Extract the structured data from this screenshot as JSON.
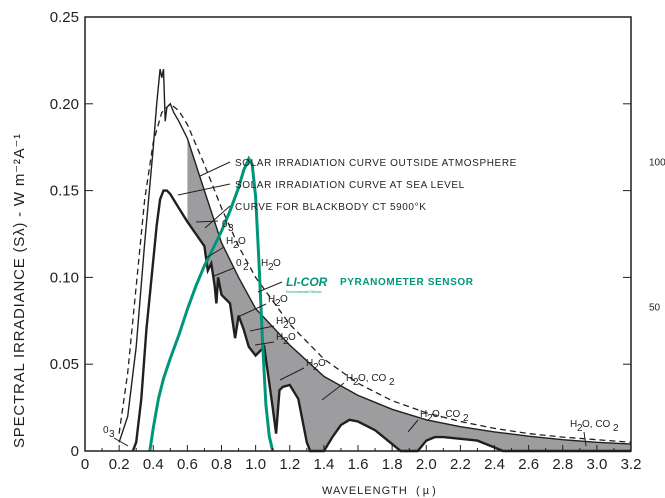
{
  "chart_data": {
    "type": "line",
    "title": "",
    "xlabel": "WAVELENGTH",
    "xlabel_unit": "( µ )",
    "ylabel": "SPECTRAL IRRADIANCE (Sλ) - W m⁻²A⁻¹",
    "xlim": [
      0,
      3.2
    ],
    "ylim": [
      0,
      0.25
    ],
    "y2lim": [
      0,
      150
    ],
    "x_ticks": [
      "0",
      "0.2",
      "0.4",
      "0.6",
      "0.8",
      "1.0",
      "1.2",
      "1.4",
      "1.6",
      "1.8",
      "2.0",
      "2.2",
      "2.4",
      "2.6",
      "2.8",
      "3.0",
      "3.2"
    ],
    "y_ticks": [
      "0",
      "0.05",
      "0.10",
      "0.15",
      "0.20",
      "0.25"
    ],
    "y2_ticks": [
      "50",
      "100"
    ],
    "grid": false,
    "brand_text": "LI-COR",
    "brand_subtext": "Environmental Division",
    "brand_color": "#00967a",
    "series": [
      {
        "name": "SOLAR IRRADIATION CURVE OUTSIDE ATMOSPHERE",
        "style": "solid",
        "x": [
          0.2,
          0.25,
          0.3,
          0.35,
          0.4,
          0.42,
          0.44,
          0.45,
          0.46,
          0.47,
          0.48,
          0.5,
          0.52,
          0.55,
          0.6,
          0.7,
          0.8,
          0.9,
          1.0,
          1.2,
          1.4,
          1.6,
          1.8,
          2.0,
          2.2,
          2.4,
          2.6,
          2.8,
          3.0,
          3.2
        ],
        "y": [
          0.005,
          0.02,
          0.06,
          0.12,
          0.175,
          0.2,
          0.22,
          0.215,
          0.22,
          0.19,
          0.198,
          0.2,
          0.195,
          0.19,
          0.18,
          0.15,
          0.12,
          0.1,
          0.082,
          0.061,
          0.043,
          0.032,
          0.024,
          0.018,
          0.014,
          0.011,
          0.0085,
          0.0065,
          0.005,
          0.004
        ]
      },
      {
        "name": "SOLAR IRRADIATION CURVE AT SEA LEVEL",
        "style": "solid",
        "x": [
          0.28,
          0.3,
          0.33,
          0.36,
          0.4,
          0.42,
          0.44,
          0.46,
          0.48,
          0.5,
          0.55,
          0.6,
          0.65,
          0.7,
          0.72,
          0.74,
          0.76,
          0.77,
          0.78,
          0.8,
          0.85,
          0.88,
          0.9,
          0.93,
          0.96,
          1.0,
          1.05,
          1.1,
          1.12,
          1.14,
          1.16,
          1.2,
          1.25,
          1.3,
          1.32,
          1.35,
          1.4,
          1.45,
          1.5,
          1.55,
          1.6,
          1.7,
          1.75,
          1.8,
          1.85,
          1.9,
          1.95,
          2.0,
          2.05,
          2.1,
          2.2,
          2.3,
          2.4,
          2.45,
          2.5,
          2.6,
          2.7,
          2.8,
          2.9,
          3.0,
          3.1,
          3.2
        ],
        "y": [
          0,
          0.005,
          0.03,
          0.07,
          0.11,
          0.13,
          0.145,
          0.15,
          0.15,
          0.148,
          0.14,
          0.132,
          0.125,
          0.118,
          0.104,
          0.108,
          0.095,
          0.085,
          0.1,
          0.09,
          0.085,
          0.065,
          0.078,
          0.07,
          0.06,
          0.055,
          0.06,
          0.025,
          0.01,
          0.035,
          0.037,
          0.038,
          0.03,
          0.005,
          0.0,
          0.0,
          0.0,
          0.008,
          0.015,
          0.018,
          0.017,
          0.012,
          0.008,
          0.004,
          0.0,
          0.0,
          0.0,
          0.006,
          0.008,
          0.008,
          0.007,
          0.006,
          0.002,
          0.0,
          0.0,
          0.0,
          0.0,
          0.0,
          0.0,
          0.0,
          0.0,
          0.0
        ]
      },
      {
        "name": "CURVE FOR BLACKBODY CT 5900°K",
        "style": "dashed",
        "x": [
          0.2,
          0.25,
          0.3,
          0.35,
          0.4,
          0.45,
          0.5,
          0.55,
          0.6,
          0.7,
          0.8,
          0.9,
          1.0,
          1.2,
          1.4,
          1.6,
          1.8,
          2.0,
          2.2,
          2.4,
          2.6,
          2.8,
          3.0,
          3.2
        ],
        "y": [
          0.01,
          0.045,
          0.095,
          0.145,
          0.178,
          0.195,
          0.2,
          0.196,
          0.188,
          0.165,
          0.14,
          0.118,
          0.1,
          0.073,
          0.053,
          0.039,
          0.029,
          0.022,
          0.017,
          0.013,
          0.01,
          0.008,
          0.0065,
          0.005
        ]
      },
      {
        "name": "PYRANOMETER SENSOR",
        "style": "teal",
        "axis": "right",
        "x": [
          0.38,
          0.4,
          0.43,
          0.46,
          0.5,
          0.55,
          0.6,
          0.65,
          0.7,
          0.75,
          0.8,
          0.85,
          0.9,
          0.93,
          0.96,
          0.98,
          1.0,
          1.02,
          1.04,
          1.06,
          1.08,
          1.1
        ],
        "y": [
          0,
          8,
          18,
          25,
          32,
          40,
          49,
          57,
          64,
          70,
          76,
          83,
          91,
          97,
          101,
          99,
          88,
          65,
          38,
          16,
          5,
          0
        ]
      }
    ]
  },
  "labels": {
    "outside_atmosphere": "SOLAR IRRADIATION CURVE OUTSIDE ATMOSPHERE",
    "sea_level": "SOLAR IRRADIATION CURVE AT SEA LEVEL",
    "blackbody": "CURVE FOR BLACKBODY CT 5900°K",
    "pyranometer": "PYRANOMETER SENSOR",
    "absorbers": [
      "0",
      "3",
      "H",
      "2",
      "O",
      "0",
      "2",
      "H",
      "2",
      "O",
      "H",
      "2",
      "O",
      "H",
      "2",
      "O",
      "H",
      "2",
      "O",
      "H",
      "2",
      "O",
      "H",
      "2",
      "O, CO",
      "2",
      "H",
      "2",
      "O, CO",
      "2",
      "H",
      "2",
      "O, CO",
      "2",
      "0",
      "3"
    ]
  },
  "colors": {
    "ink": "#231f20",
    "shade": "#9d9d9f",
    "teal": "#00967a"
  }
}
